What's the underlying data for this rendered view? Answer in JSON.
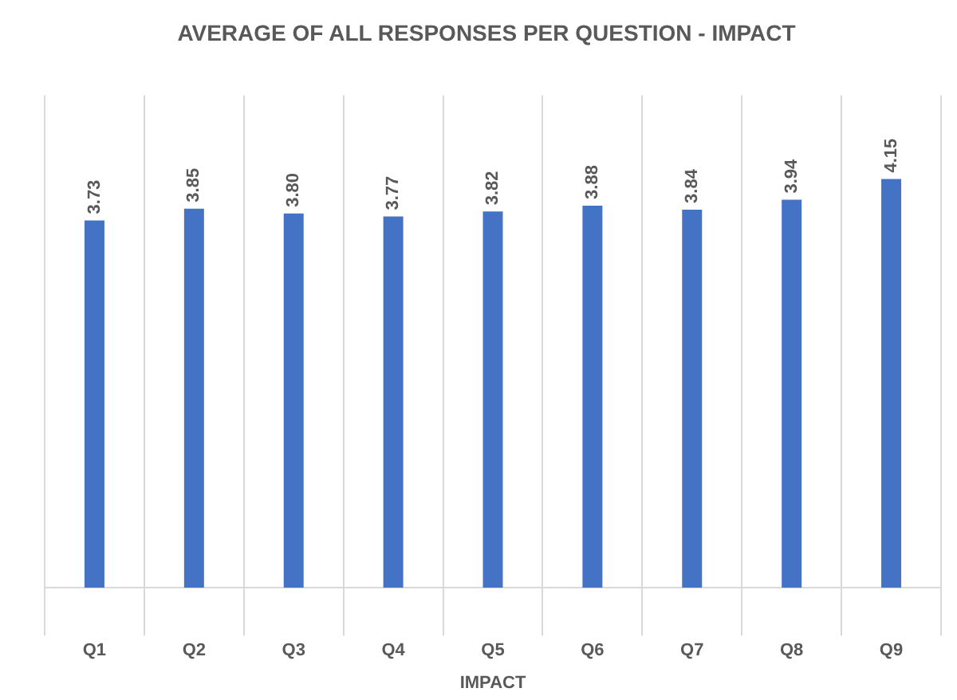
{
  "chart_data": {
    "type": "bar",
    "title": "AVERAGE OF ALL RESPONSES PER QUESTION - IMPACT",
    "xlabel": "IMPACT",
    "categories": [
      "Q1",
      "Q2",
      "Q3",
      "Q4",
      "Q5",
      "Q6",
      "Q7",
      "Q8",
      "Q9"
    ],
    "values": [
      3.73,
      3.85,
      3.8,
      3.77,
      3.82,
      3.88,
      3.84,
      3.94,
      4.15
    ],
    "value_labels": [
      "3.73",
      "3.85",
      "3.80",
      "3.77",
      "3.82",
      "3.88",
      "3.84",
      "3.94",
      "4.15"
    ],
    "color": "#4472c4",
    "ylim": [
      0,
      5
    ],
    "grid": "x",
    "tick_labels": "x",
    "legend": false
  }
}
